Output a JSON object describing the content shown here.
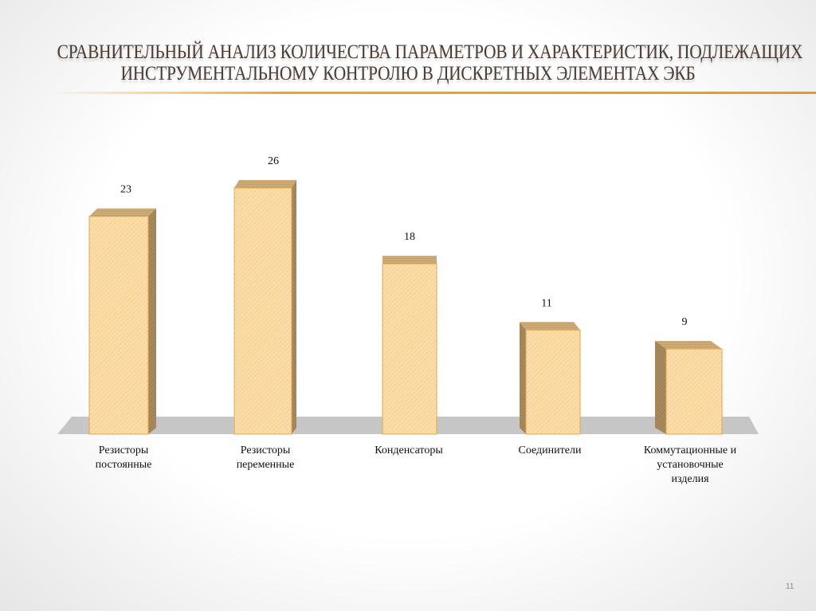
{
  "slide": {
    "title_line1": "СРАВНИТЕЛЬНЫЙ АНАЛИЗ КОЛИЧЕСТВА ПАРАМЕТРОВ И ХАРАКТЕРИСТИК, ПОДЛЕЖАЩИХ",
    "title_line2": "ИНСТРУМЕНТАЛЬНОМУ КОНТРОЛЮ В ДИСКРЕТНЫХ ЭЛЕМЕНТАХ ЭКБ",
    "page_number": "11",
    "accent_color": "#f0a528"
  },
  "chart_data": {
    "type": "bar",
    "title": "Сравнительный анализ количества параметров и характеристик, подлежащих инструментальному контролю в дискретных элементах ЭКБ",
    "categories": [
      "Резисторы постоянные",
      "Резисторы переменные",
      "Конденсаторы",
      "Соединители",
      "Коммутационные и установочные изделия"
    ],
    "category_lines": [
      [
        "Резисторы",
        "постоянные"
      ],
      [
        "Резисторы",
        "переменные"
      ],
      [
        "Конденсаторы"
      ],
      [
        "Соединители"
      ],
      [
        "Коммутационные и",
        "установочные",
        "изделия"
      ]
    ],
    "values": [
      23,
      26,
      18,
      11,
      9
    ],
    "value_labels": [
      "23",
      "26",
      "18",
      "11",
      "9"
    ],
    "xlabel": "",
    "ylabel": "",
    "ylim": [
      0,
      28
    ],
    "grid": false,
    "legend": "none",
    "style": "3d-bar",
    "colors": {
      "bar_front": "#fbd9a0",
      "bar_side": "#a88a5c",
      "bar_top": "#c9a874",
      "bar_edge": "#e0a850",
      "floor": "#c4c4c4"
    }
  }
}
